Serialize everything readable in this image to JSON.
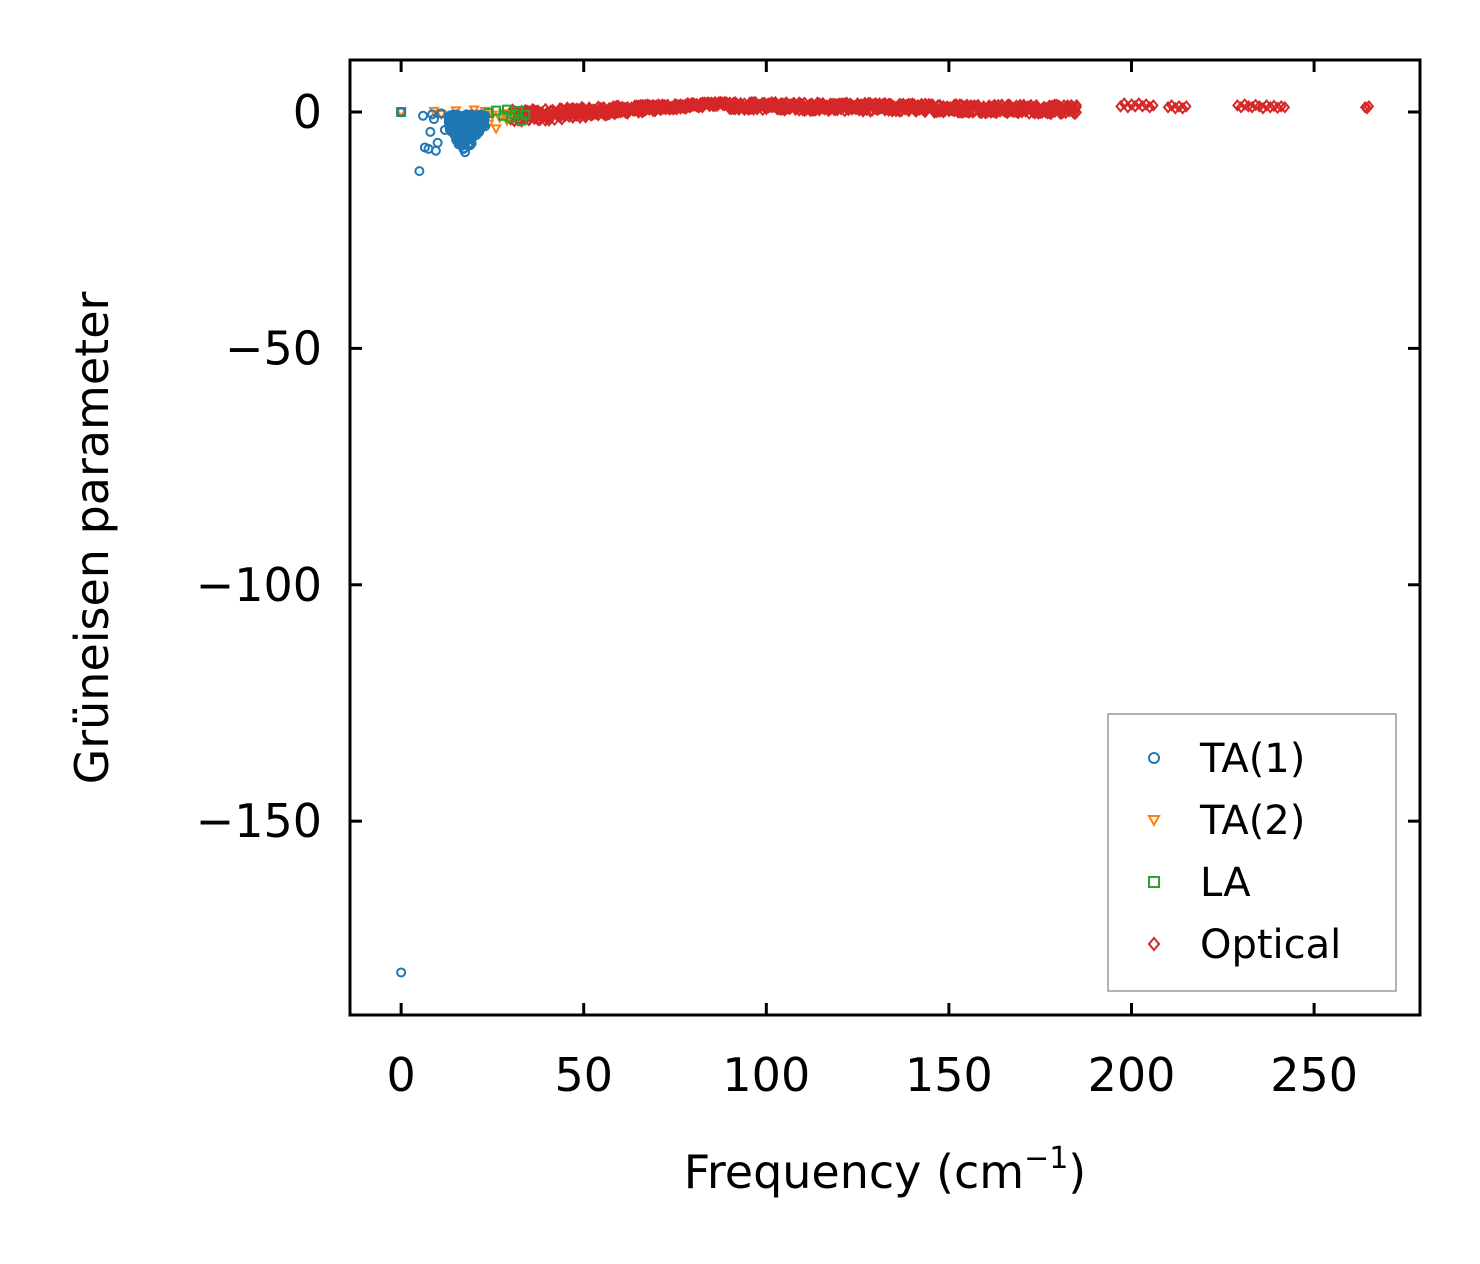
{
  "chart_data": {
    "type": "scatter",
    "xlabel": "Frequency (cm",
    "xlabel_sup": "−1",
    "xlabel_close": ")",
    "ylabel": "Grüneisen parameter",
    "xlim": [
      -14,
      279
    ],
    "ylim": [
      -191,
      11
    ],
    "x_ticks": [
      0,
      50,
      100,
      150,
      200,
      250
    ],
    "x_tick_labels": [
      "0",
      "50",
      "100",
      "150",
      "200",
      "250"
    ],
    "y_ticks": [
      0,
      -50,
      -100,
      -150
    ],
    "y_tick_labels": [
      "0",
      "−50",
      "−100",
      "−150"
    ],
    "grid": false,
    "legend_position": "bottom-right",
    "series": [
      {
        "name": "TA(1)",
        "marker": "circle",
        "color": "#1f77b4",
        "points": [
          [
            0,
            0
          ],
          [
            0,
            -182
          ],
          [
            5,
            -12.5
          ],
          [
            6,
            -0.8
          ],
          [
            6.5,
            -7.5
          ],
          [
            7.5,
            -7.8
          ],
          [
            8,
            -4.2
          ],
          [
            8.5,
            -0.5
          ],
          [
            9,
            -1.5
          ],
          [
            9.5,
            -8.2
          ],
          [
            10,
            -6.5
          ],
          [
            11,
            -0.3
          ],
          [
            12,
            -3.8
          ],
          [
            13,
            -1.2
          ],
          [
            13.5,
            -2.5
          ],
          [
            14,
            -0.6
          ],
          [
            14.5,
            -4.5
          ],
          [
            15,
            -1.8
          ],
          [
            15.5,
            -5.2
          ],
          [
            16,
            -3
          ],
          [
            16.5,
            -6.8
          ],
          [
            17,
            -2.2
          ],
          [
            17.5,
            -8.5
          ],
          [
            18,
            -4
          ],
          [
            18.5,
            -1
          ],
          [
            19,
            -5.6
          ],
          [
            19.5,
            -3.2
          ],
          [
            20,
            -2
          ],
          [
            20.5,
            -4.8
          ],
          [
            21,
            -1.5
          ],
          [
            21.5,
            -3.6
          ],
          [
            22,
            -2.4
          ],
          [
            22.5,
            -0.8
          ],
          [
            23,
            -3
          ]
        ]
      },
      {
        "name": "TA(2)",
        "marker": "triangle-down",
        "color": "#ff7f0e",
        "points": [
          [
            0,
            0
          ],
          [
            9,
            0.2
          ],
          [
            11,
            -0.5
          ],
          [
            13,
            -1
          ],
          [
            15,
            0.3
          ],
          [
            17,
            -1.5
          ],
          [
            19,
            -0.4
          ],
          [
            20,
            0.5
          ],
          [
            21,
            -2
          ],
          [
            22,
            -1
          ],
          [
            23,
            0.2
          ],
          [
            24,
            -2.5
          ],
          [
            25,
            -0.6
          ],
          [
            26,
            -3.5
          ],
          [
            27,
            -1.2
          ],
          [
            28,
            -0.3
          ],
          [
            29,
            -1.8
          ],
          [
            30,
            -0.5
          ]
        ]
      },
      {
        "name": "LA",
        "marker": "square",
        "color": "#2ca02c",
        "points": [
          [
            0,
            0
          ],
          [
            24,
            -0.2
          ],
          [
            26,
            0.3
          ],
          [
            28,
            -0.8
          ],
          [
            29,
            0.5
          ],
          [
            30,
            -1.2
          ],
          [
            31,
            -0.4
          ],
          [
            32,
            0.2
          ],
          [
            33,
            -1.8
          ],
          [
            34,
            -0.6
          ]
        ]
      },
      {
        "name": "Optical",
        "marker": "diamond",
        "color": "#d62728",
        "bands": [
          [
            30,
            90,
            -2.5,
            0.5,
            1.5,
            2.2
          ],
          [
            90,
            185,
            0.5,
            2.2,
            -0.5,
            1.5
          ]
        ],
        "points": [
          [
            197,
            1.2
          ],
          [
            198,
            1.8
          ],
          [
            199,
            1
          ],
          [
            200,
            1.6
          ],
          [
            201,
            1.2
          ],
          [
            202,
            1.8
          ],
          [
            203,
            1.2
          ],
          [
            204,
            1.6
          ],
          [
            205,
            1
          ],
          [
            206,
            1.4
          ],
          [
            210,
            1
          ],
          [
            211,
            1.4
          ],
          [
            212,
            0.8
          ],
          [
            213,
            1.2
          ],
          [
            214,
            0.8
          ],
          [
            215,
            1.2
          ],
          [
            229,
            1.4
          ],
          [
            230,
            1
          ],
          [
            231,
            1.6
          ],
          [
            232,
            1.2
          ],
          [
            233,
            1
          ],
          [
            234,
            1.5
          ],
          [
            235,
            1.2
          ],
          [
            236,
            0.8
          ],
          [
            237,
            1.4
          ],
          [
            238,
            1
          ],
          [
            239,
            1.3
          ],
          [
            240,
            0.9
          ],
          [
            241,
            1.2
          ],
          [
            242,
            1
          ],
          [
            264,
            1
          ],
          [
            265,
            1.2
          ],
          [
            264.5,
            0.8
          ]
        ]
      }
    ]
  }
}
